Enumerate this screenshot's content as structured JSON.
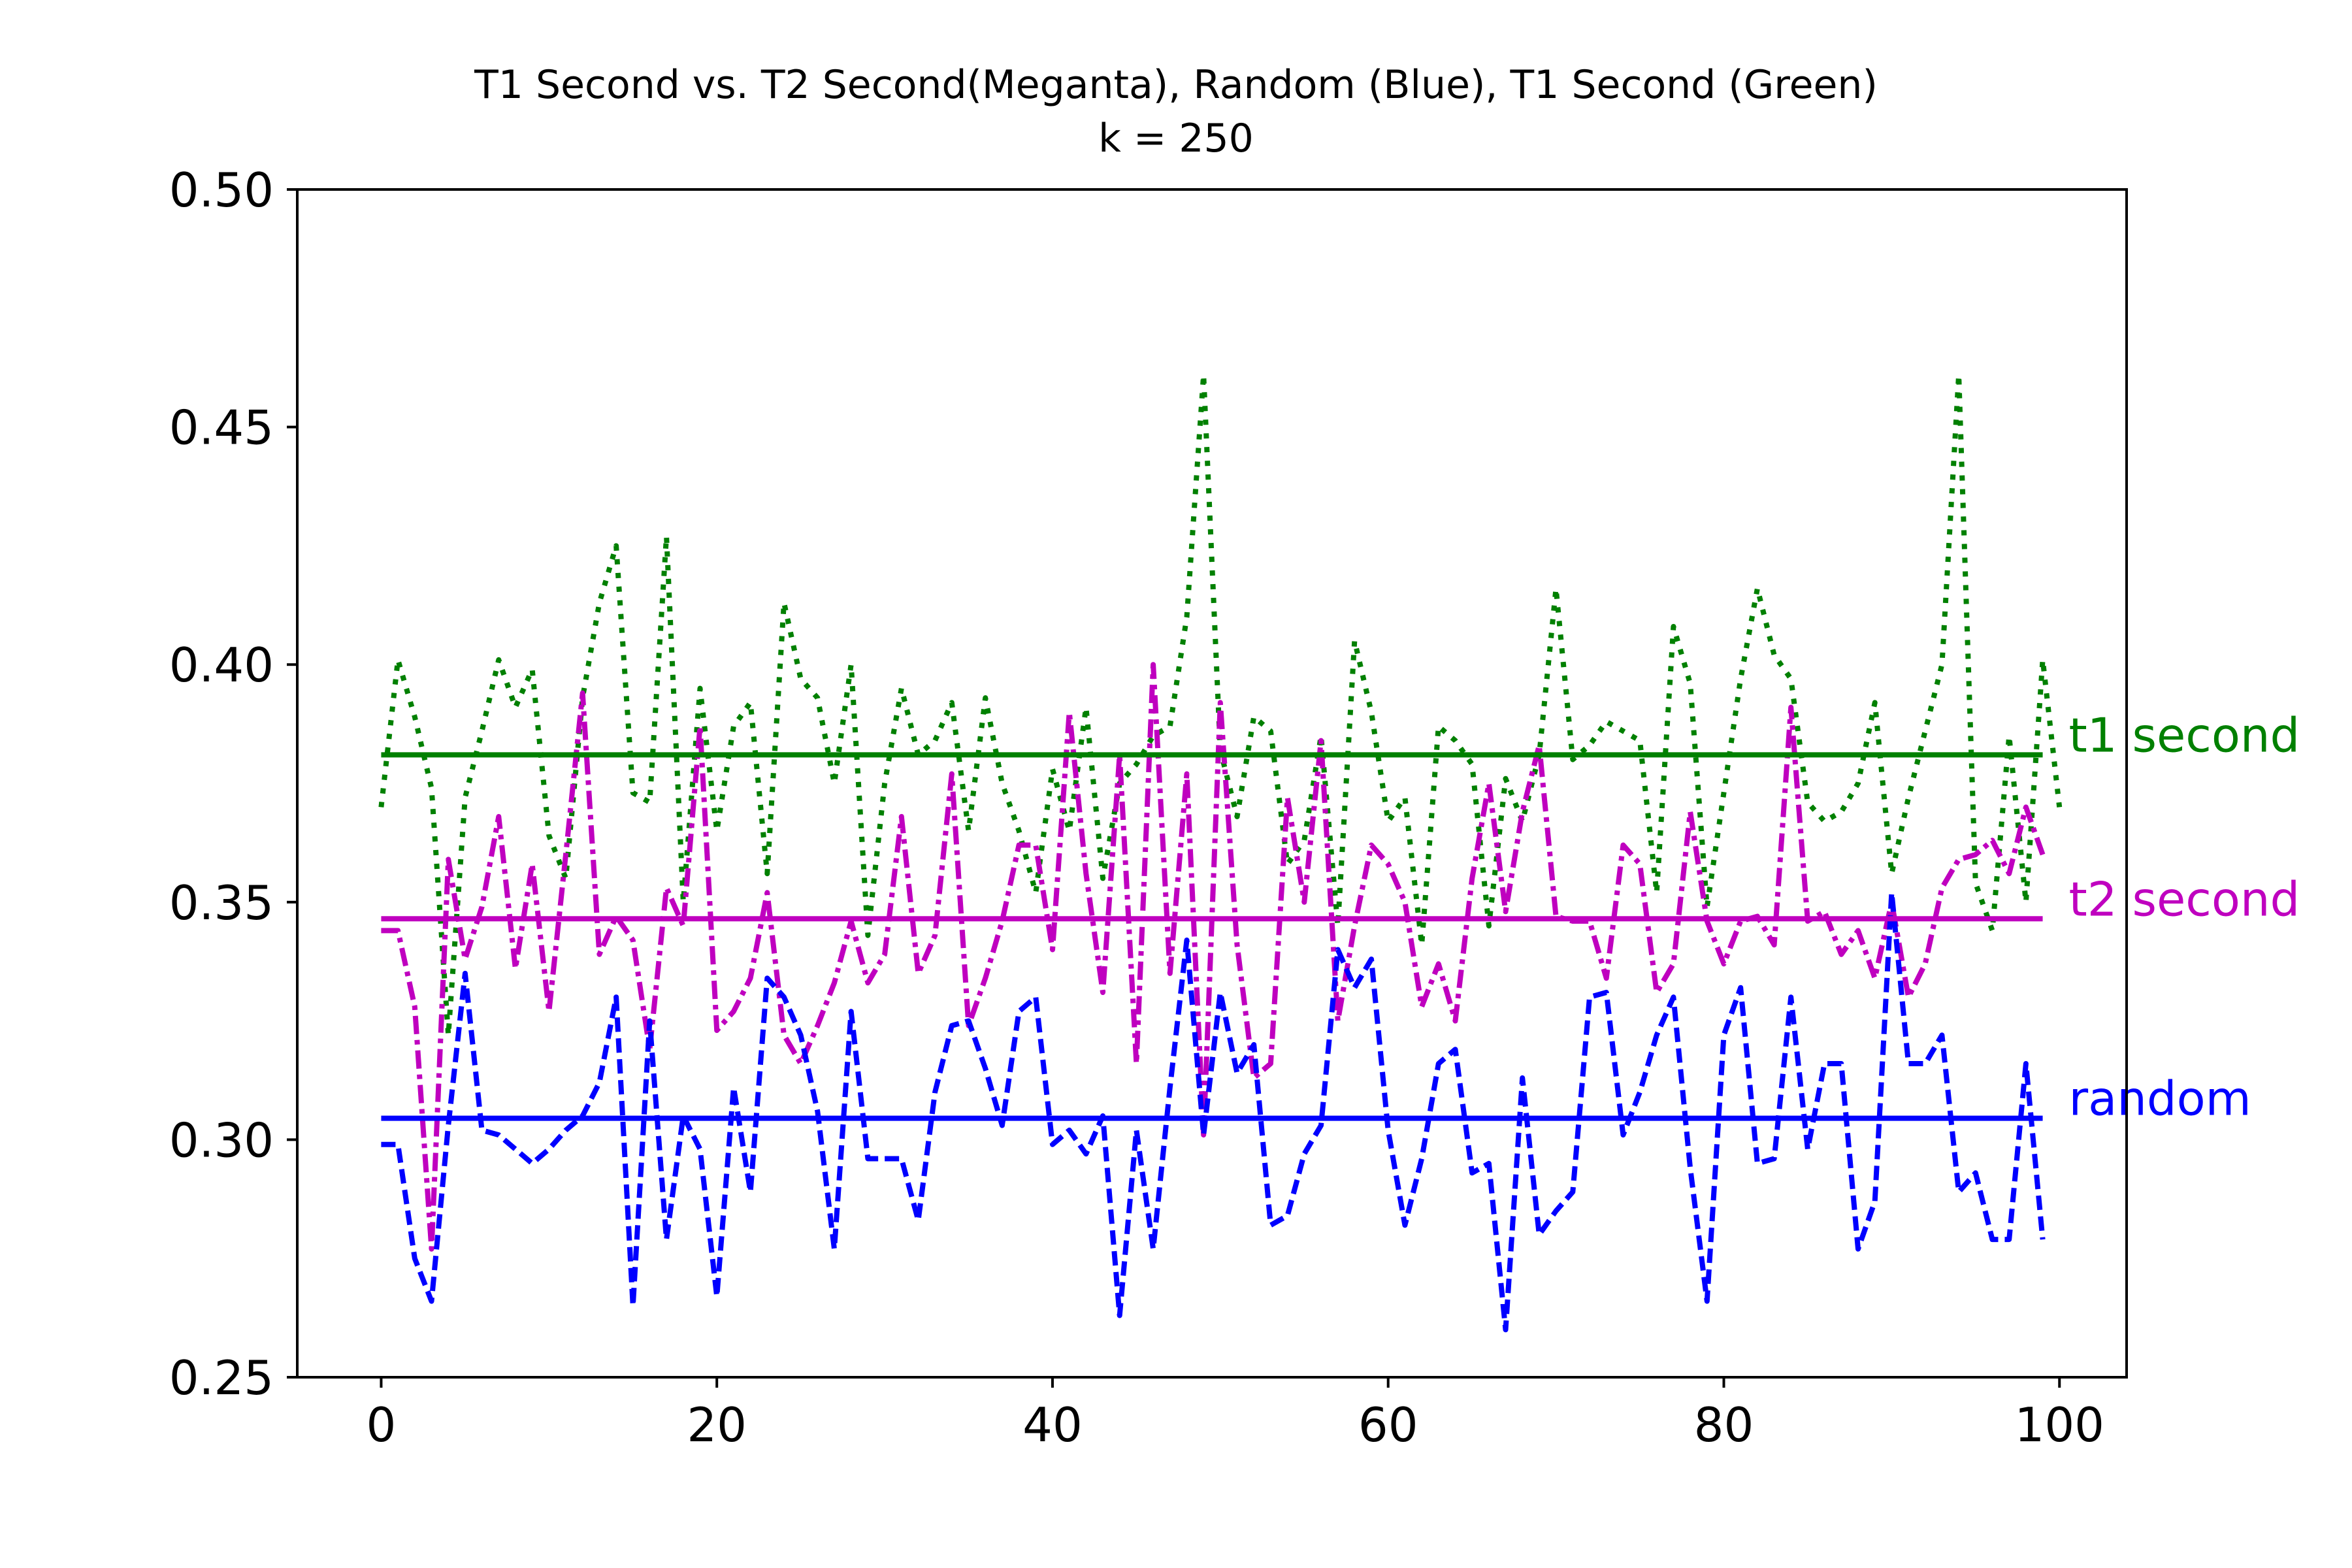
{
  "chart_data": {
    "type": "line",
    "title": "T1 Second vs. T2 Second(Meganta), Random (Blue), T1 Second (Green)",
    "subtitle": "k = 250",
    "xlabel": "",
    "ylabel": "",
    "xlim": [
      -5,
      104
    ],
    "ylim": [
      0.25,
      0.5
    ],
    "xticks": [
      0,
      20,
      40,
      60,
      80,
      100
    ],
    "xtick_labels": [
      "0",
      "20",
      "40",
      "60",
      "80",
      "100"
    ],
    "yticks": [
      0.25,
      0.3,
      0.35,
      0.4,
      0.45,
      0.5
    ],
    "ytick_labels": [
      "0.25",
      "0.30",
      "0.35",
      "0.40",
      "0.45",
      "0.50"
    ],
    "grid": false,
    "legend": "none",
    "series": [
      {
        "key": "t1",
        "color": "#008000",
        "style": "dotted",
        "values": [
          0.37,
          0.401,
          0.389,
          0.374,
          0.322,
          0.372,
          0.386,
          0.401,
          0.391,
          0.399,
          0.364,
          0.355,
          0.393,
          0.413,
          0.425,
          0.373,
          0.371,
          0.427,
          0.35,
          0.395,
          0.365,
          0.387,
          0.392,
          0.356,
          0.413,
          0.397,
          0.393,
          0.375,
          0.4,
          0.343,
          0.375,
          0.395,
          0.381,
          0.384,
          0.392,
          0.365,
          0.393,
          0.375,
          0.365,
          0.352,
          0.378,
          0.365,
          0.391,
          0.355,
          0.375,
          0.379,
          0.385,
          0.387,
          0.41,
          0.461,
          0.382,
          0.368,
          0.389,
          0.386,
          0.358,
          0.363,
          0.385,
          0.345,
          0.405,
          0.39,
          0.367,
          0.372,
          0.341,
          0.387,
          0.384,
          0.379,
          0.345,
          0.376,
          0.367,
          0.381,
          0.416,
          0.38,
          0.383,
          0.388,
          0.386,
          0.384,
          0.352,
          0.408,
          0.396,
          0.349,
          0.373,
          0.397,
          0.416,
          0.402,
          0.397,
          0.371,
          0.367,
          0.369,
          0.375,
          0.392,
          0.356,
          0.372,
          0.386,
          0.4,
          0.461,
          0.354,
          0.344,
          0.385,
          0.35,
          0.401,
          0.37
        ]
      },
      {
        "key": "t2",
        "color": "#bf00bf",
        "style": "dashdot",
        "values": [
          0.344,
          0.344,
          0.328,
          0.277,
          0.359,
          0.338,
          0.349,
          0.368,
          0.336,
          0.358,
          0.327,
          0.36,
          0.394,
          0.339,
          0.347,
          0.342,
          0.319,
          0.353,
          0.345,
          0.387,
          0.323,
          0.327,
          0.334,
          0.352,
          0.322,
          0.316,
          0.324,
          0.333,
          0.346,
          0.333,
          0.339,
          0.368,
          0.335,
          0.343,
          0.377,
          0.324,
          0.334,
          0.346,
          0.362,
          0.362,
          0.34,
          0.39,
          0.356,
          0.331,
          0.381,
          0.316,
          0.4,
          0.335,
          0.377,
          0.301,
          0.392,
          0.341,
          0.313,
          0.316,
          0.372,
          0.35,
          0.384,
          0.325,
          0.345,
          0.362,
          0.358,
          0.35,
          0.328,
          0.337,
          0.325,
          0.355,
          0.375,
          0.348,
          0.369,
          0.383,
          0.347,
          0.346,
          0.346,
          0.334,
          0.362,
          0.358,
          0.331,
          0.337,
          0.369,
          0.346,
          0.337,
          0.346,
          0.347,
          0.341,
          0.391,
          0.346,
          0.348,
          0.339,
          0.344,
          0.334,
          0.35,
          0.33,
          0.337,
          0.353,
          0.359,
          0.36,
          0.363,
          0.356,
          0.37,
          0.36
        ]
      },
      {
        "key": "random",
        "color": "#0000ff",
        "style": "dashed",
        "values": [
          0.299,
          0.299,
          0.275,
          0.266,
          0.303,
          0.335,
          0.302,
          0.301,
          0.298,
          0.295,
          0.298,
          0.302,
          0.305,
          0.312,
          0.33,
          0.265,
          0.325,
          0.279,
          0.305,
          0.298,
          0.267,
          0.311,
          0.289,
          0.334,
          0.33,
          0.322,
          0.306,
          0.277,
          0.327,
          0.296,
          0.296,
          0.296,
          0.283,
          0.31,
          0.324,
          0.325,
          0.315,
          0.303,
          0.327,
          0.33,
          0.299,
          0.302,
          0.297,
          0.305,
          0.263,
          0.302,
          0.277,
          0.311,
          0.342,
          0.301,
          0.331,
          0.314,
          0.32,
          0.282,
          0.284,
          0.297,
          0.303,
          0.34,
          0.332,
          0.338,
          0.302,
          0.282,
          0.296,
          0.316,
          0.319,
          0.293,
          0.295,
          0.26,
          0.313,
          0.28,
          0.285,
          0.289,
          0.33,
          0.331,
          0.301,
          0.31,
          0.322,
          0.33,
          0.294,
          0.266,
          0.322,
          0.332,
          0.295,
          0.296,
          0.33,
          0.298,
          0.316,
          0.316,
          0.277,
          0.287,
          0.352,
          0.316,
          0.316,
          0.322,
          0.289,
          0.293,
          0.279,
          0.279,
          0.316,
          0.279
        ]
      }
    ],
    "hlines": [
      {
        "key": "t1",
        "label": "t1 second",
        "value": 0.381,
        "color": "#008000"
      },
      {
        "key": "t2",
        "label": "t2 second",
        "value": 0.3465,
        "color": "#bf00bf"
      },
      {
        "key": "random",
        "label": "random",
        "value": 0.3045,
        "color": "#0000ff"
      }
    ]
  }
}
